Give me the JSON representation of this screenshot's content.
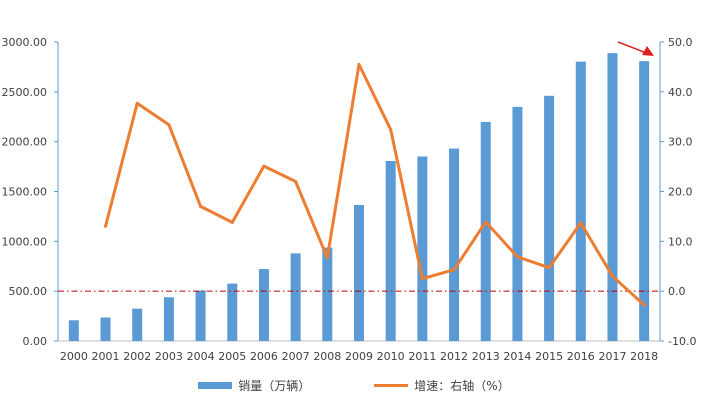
{
  "chart_data": {
    "type": "bar",
    "categories": [
      "2000",
      "2001",
      "2002",
      "2003",
      "2004",
      "2005",
      "2006",
      "2007",
      "2008",
      "2009",
      "2010",
      "2011",
      "2012",
      "2013",
      "2014",
      "2015",
      "2016",
      "2017",
      "2018"
    ],
    "series": [
      {
        "name": "销量（万辆）",
        "type": "bar",
        "axis": "left",
        "values": [
          208,
          236,
          325,
          439,
          507,
          576,
          722,
          879,
          938,
          1365,
          1806,
          1851,
          1931,
          2198,
          2349,
          2460,
          2803,
          2888,
          2808
        ]
      },
      {
        "name": "增速：右轴（%）",
        "type": "line",
        "axis": "right",
        "values": [
          null,
          13.0,
          37.7,
          33.4,
          17.0,
          13.8,
          25.1,
          22.0,
          6.7,
          45.5,
          32.4,
          2.5,
          4.3,
          13.9,
          6.9,
          4.7,
          13.7,
          3.0,
          -2.8
        ]
      }
    ],
    "y_left": {
      "lim": [
        0,
        3000
      ],
      "ticks": [
        "0.00",
        "500.00",
        "1000.00",
        "1500.00",
        "2000.00",
        "2500.00",
        "3000.00"
      ]
    },
    "y_right": {
      "lim": [
        -10,
        50
      ],
      "ticks": [
        "-10.0",
        "0.0",
        "10.0",
        "20.0",
        "30.0",
        "40.0",
        "50.0"
      ]
    },
    "reference_line": {
      "axis": "right",
      "value": 0,
      "style": "dash-dot"
    },
    "colors": {
      "bar": "#5B9BD5",
      "line": "#ED7D31",
      "reference": "#C00000",
      "arrow": "#E02020"
    },
    "grid": false,
    "legend_position": "bottom"
  }
}
